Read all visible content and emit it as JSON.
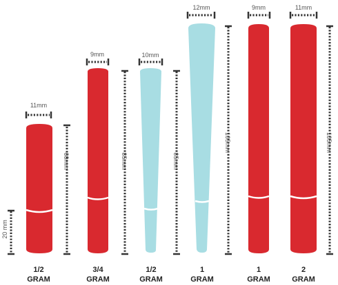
{
  "colors": {
    "red": "#d9292f",
    "blue": "#a8dde3",
    "dots": "#333333",
    "text": "#222222"
  },
  "products": [
    {
      "id": "half-gram-red",
      "width_label": "11mm",
      "length_label": "60mm",
      "filter_label": "20 mm",
      "amount": "1/2",
      "unit": "GRAM",
      "color": "#d9292f",
      "shape": "tube"
    },
    {
      "id": "three-quarter-gram-red",
      "width_label": "9mm",
      "length_label": "85mm",
      "amount": "3/4",
      "unit": "GRAM",
      "color": "#d9292f",
      "shape": "tube"
    },
    {
      "id": "half-gram-blue",
      "width_label": "10mm",
      "length_label": "85mm",
      "amount": "1/2",
      "unit": "GRAM",
      "color": "#a8dde3",
      "shape": "cone"
    },
    {
      "id": "one-gram-blue",
      "width_label": "12mm",
      "length_label": "105mm",
      "amount": "1",
      "unit": "GRAM",
      "color": "#a8dde3",
      "shape": "cone"
    },
    {
      "id": "one-gram-red",
      "width_label": "9mm",
      "amount": "1",
      "unit": "GRAM",
      "color": "#d9292f",
      "shape": "tube"
    },
    {
      "id": "two-gram-red",
      "width_label": "11mm",
      "length_label": "105mm",
      "amount": "2",
      "unit": "GRAM",
      "color": "#d9292f",
      "shape": "tube"
    }
  ]
}
